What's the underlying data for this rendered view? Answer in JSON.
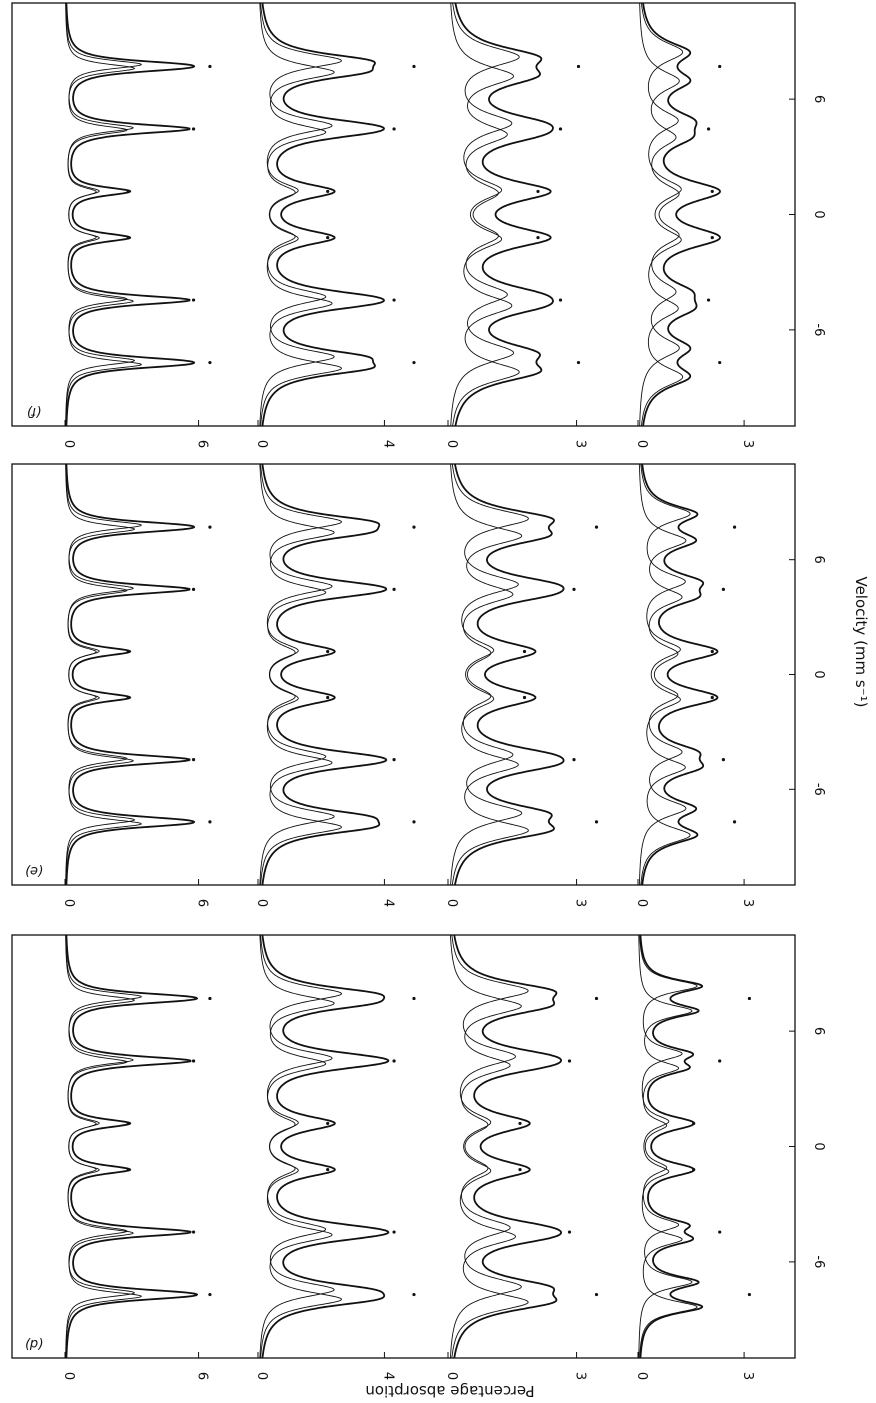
{
  "chart_data": {
    "type": "line",
    "xlabel": "Velocity  (mm s⁻¹)",
    "ylabel": "Percentage  absorption",
    "xticks": [
      -6,
      0,
      6
    ],
    "xlim": [
      -11,
      11
    ],
    "lines": [
      7.7,
      4.45,
      1.2,
      -1.2,
      -4.45,
      -7.7
    ],
    "panels": [
      {
        "label": "(d)",
        "traces": [
          {
            "ymax": 8.4,
            "ytick": "6",
            "depths": [
              6.2,
              5.5,
              2.7,
              2.7,
              5.5,
              6.2
            ],
            "width": 0.55,
            "split": 0.18
          },
          {
            "ymax": 5.6,
            "ytick": "4",
            "depths": [
              4.7,
              4.1,
              2.1,
              2.1,
              4.1,
              4.7
            ],
            "width": 0.95,
            "split": 0.5
          },
          {
            "ymax": 4.2,
            "ytick": "3",
            "depths": [
              3.3,
              2.7,
              1.6,
              1.6,
              2.7,
              3.3
            ],
            "width": 1.15,
            "split": 0.8
          },
          {
            "ymax": 4.1,
            "ytick": "3",
            "depths": [
              3.0,
              2.2,
              1.5,
              1.5,
              2.2,
              3.0
            ],
            "width": 0.8,
            "split": 1.3
          }
        ]
      },
      {
        "label": "(e)",
        "traces": [
          {
            "ymax": 8.4,
            "ytick": "6",
            "depths": [
              6.2,
              5.5,
              2.7,
              2.7,
              5.5,
              6.2
            ],
            "width": 0.55,
            "split": 0.2
          },
          {
            "ymax": 5.6,
            "ytick": "4",
            "depths": [
              4.7,
              4.1,
              2.1,
              2.1,
              4.1,
              4.7
            ],
            "width": 0.95,
            "split": 0.55
          },
          {
            "ymax": 4.2,
            "ytick": "3",
            "depths": [
              3.3,
              2.8,
              1.7,
              1.7,
              2.8,
              3.3
            ],
            "width": 1.2,
            "split": 0.9
          },
          {
            "ymax": 4.1,
            "ytick": "3",
            "depths": [
              2.6,
              2.3,
              2.0,
              2.0,
              2.3,
              2.6
            ],
            "width": 1.1,
            "split": 1.4
          }
        ]
      },
      {
        "label": "(f)",
        "traces": [
          {
            "ymax": 8.4,
            "ytick": "6",
            "depths": [
              6.2,
              5.5,
              2.7,
              2.7,
              5.5,
              6.2
            ],
            "width": 0.55,
            "split": 0.2
          },
          {
            "ymax": 5.6,
            "ytick": "4",
            "depths": [
              4.7,
              4.1,
              2.1,
              2.1,
              4.1,
              4.7
            ],
            "width": 0.95,
            "split": 0.6
          },
          {
            "ymax": 4.2,
            "ytick": "3",
            "depths": [
              2.9,
              2.5,
              2.0,
              2.0,
              2.5,
              2.9
            ],
            "width": 1.3,
            "split": 1.0
          },
          {
            "ymax": 4.1,
            "ytick": "3",
            "depths": [
              2.2,
              1.9,
              2.0,
              2.0,
              1.9,
              2.2
            ],
            "width": 1.3,
            "split": 1.5
          }
        ]
      }
    ]
  }
}
